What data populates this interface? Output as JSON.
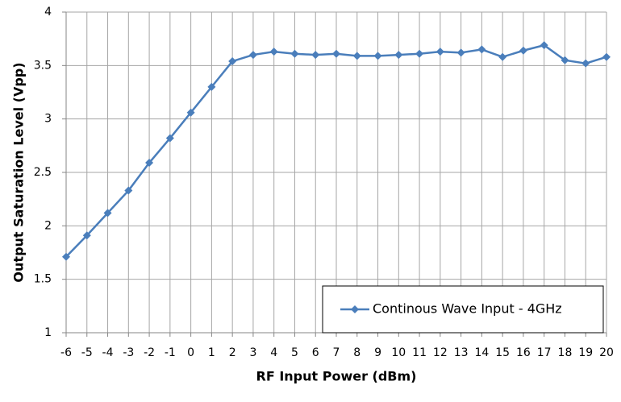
{
  "chart_data": {
    "type": "line",
    "x_label": "RF Input Power (dBm)",
    "y_label": "Output Saturation Level (Vpp)",
    "x": [
      -6,
      -5,
      -4,
      -3,
      -2,
      -1,
      0,
      1,
      2,
      3,
      4,
      5,
      6,
      7,
      8,
      9,
      10,
      11,
      12,
      13,
      14,
      15,
      16,
      17,
      18,
      19,
      20
    ],
    "series": [
      {
        "name": "Continous Wave Input - 4GHz",
        "color": "#4a7ebb",
        "values": [
          1.71,
          1.91,
          2.12,
          2.33,
          2.59,
          2.82,
          3.06,
          3.3,
          3.54,
          3.6,
          3.63,
          3.61,
          3.6,
          3.61,
          3.59,
          3.59,
          3.6,
          3.61,
          3.63,
          3.62,
          3.65,
          3.58,
          3.64,
          3.69,
          3.55,
          3.52,
          3.58
        ]
      }
    ],
    "xlim": [
      -6,
      20
    ],
    "xticks": [
      -6,
      -5,
      -4,
      -3,
      -2,
      -1,
      0,
      1,
      2,
      3,
      4,
      5,
      6,
      7,
      8,
      9,
      10,
      11,
      12,
      13,
      14,
      15,
      16,
      17,
      18,
      19,
      20
    ],
    "ylim": [
      1,
      4
    ],
    "yticks": [
      1,
      1.5,
      2,
      2.5,
      3,
      3.5,
      4
    ],
    "grid": true,
    "legend_position": "lower right"
  }
}
